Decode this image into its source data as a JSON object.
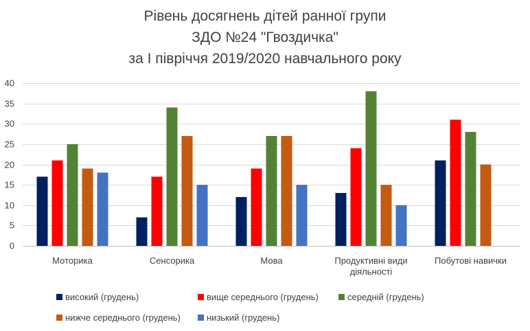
{
  "chart_data": {
    "type": "bar",
    "title_lines": [
      "Рівень досягнень дітей ранної групи",
      "ЗДО №24 \"Гвоздичка\"",
      "за I півріччя 2019/2020  навчального року"
    ],
    "categories": [
      "Моторика",
      "Сенсорика",
      "Мова",
      "Продуктивні види діяльності",
      "Побутові навички"
    ],
    "category_label_lines": [
      [
        "Моторика"
      ],
      [
        "Сенсорика"
      ],
      [
        "Мова"
      ],
      [
        "Продуктивні види",
        "діяльності"
      ],
      [
        "Побутові навички"
      ]
    ],
    "series": [
      {
        "name": "високий (грудень)",
        "color": "#002060",
        "values": [
          17,
          7,
          12,
          13,
          21
        ]
      },
      {
        "name": "вище середнього (грудень)",
        "color": "#ff0000",
        "values": [
          21,
          17,
          19,
          24,
          31
        ]
      },
      {
        "name": "середній (грудень)",
        "color": "#548235",
        "values": [
          25,
          34,
          27,
          38,
          28
        ]
      },
      {
        "name": "нижче середнього (грудень)",
        "color": "#c55a11",
        "values": [
          19,
          27,
          27,
          15,
          20
        ]
      },
      {
        "name": "низький (грудень)",
        "color": "#4472c4",
        "values": [
          18,
          15,
          15,
          10,
          null
        ]
      }
    ],
    "ylim": [
      0,
      40
    ],
    "yticks": [
      0,
      5,
      10,
      15,
      20,
      25,
      30,
      35,
      40
    ],
    "grid": true,
    "legend_position": "bottom"
  }
}
